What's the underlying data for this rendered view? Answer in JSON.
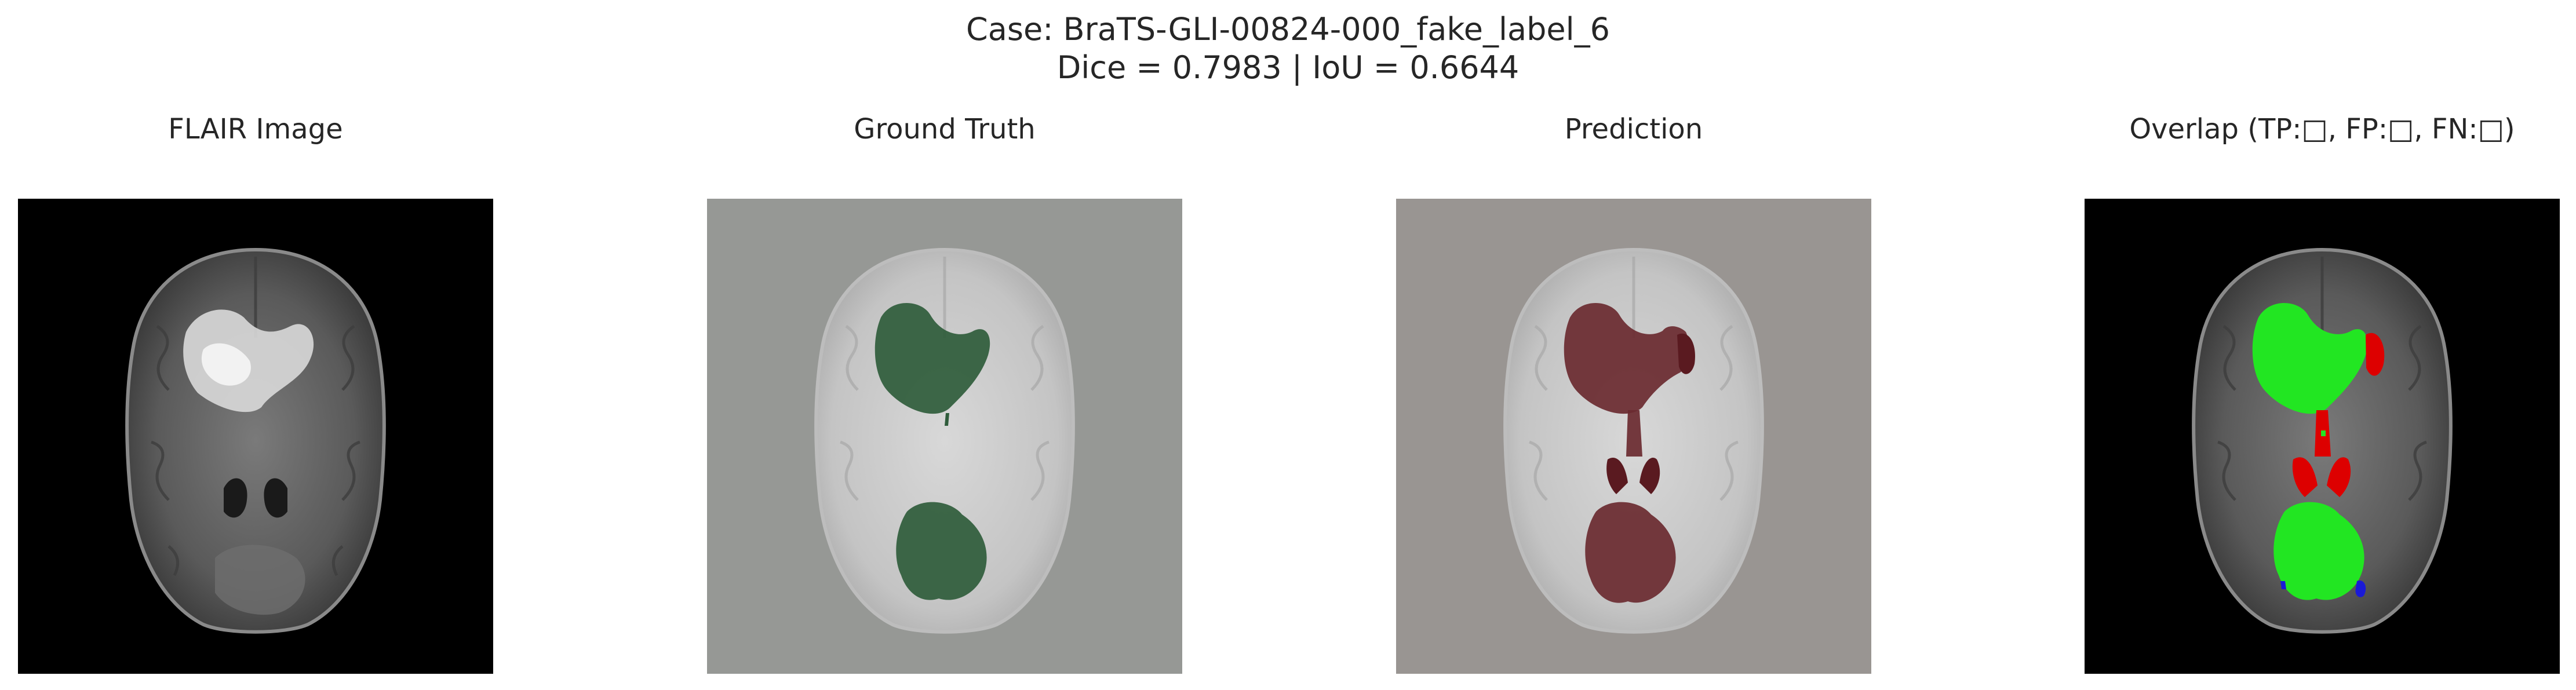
{
  "figure": {
    "title_line1": "Case: BraTS-GLI-00824-000_fake_label_6",
    "title_line2": "Dice = 0.7983  |  IoU = 0.6644"
  },
  "panels": [
    {
      "title": "FLAIR Image"
    },
    {
      "title": "Ground Truth"
    },
    {
      "title": "Prediction"
    },
    {
      "title": "Overlap (TP:□, FP:□, FN:□)"
    }
  ],
  "colors": {
    "tp": "#22e622",
    "fp": "#dd0000",
    "fn": "#1a1ad6",
    "ground_truth_overlay": "#2f5c3b",
    "prediction_overlay": "#6a2a30"
  }
}
